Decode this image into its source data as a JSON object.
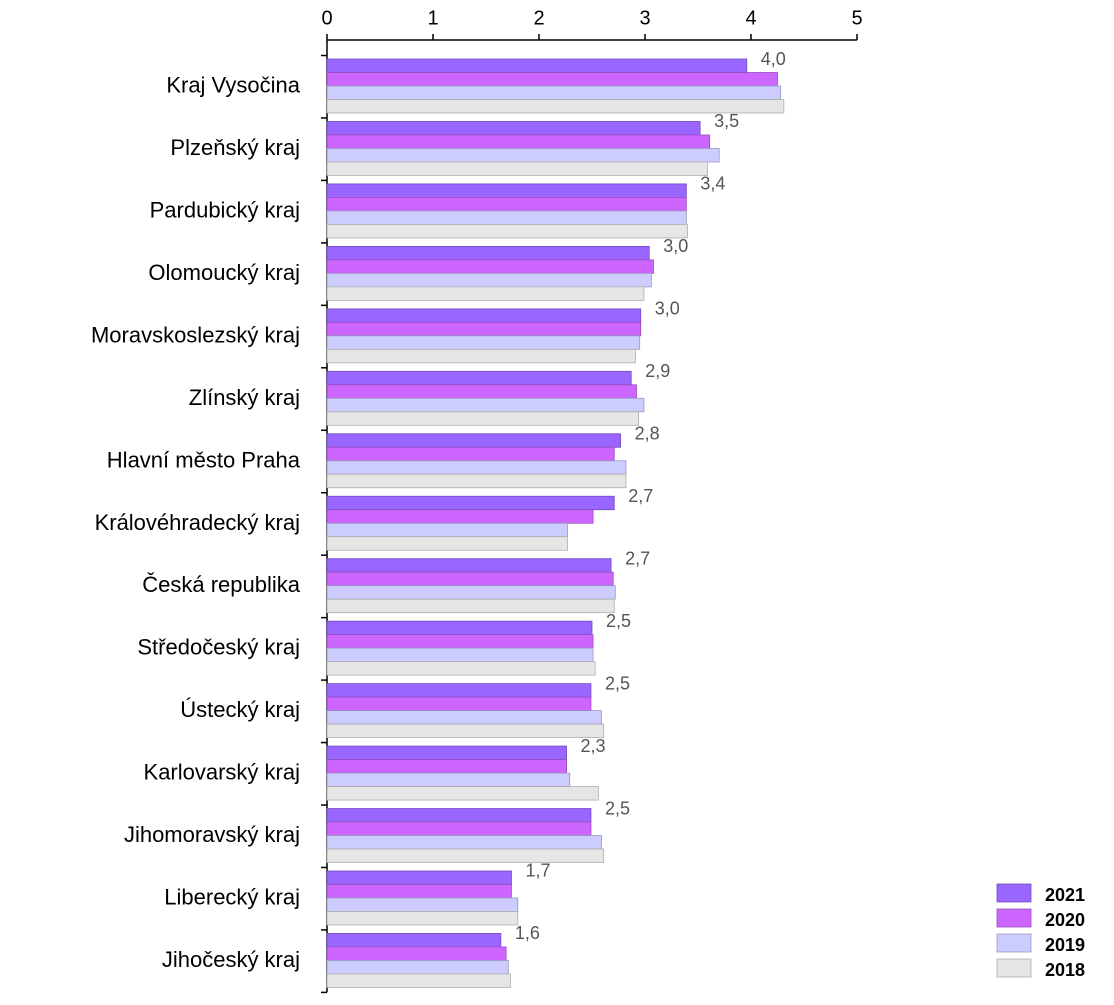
{
  "chart_data": {
    "type": "hbar",
    "categories": [
      "Kraj Vysočina",
      "Plzeňský kraj",
      "Pardubický kraj",
      "Olomoucký kraj",
      "Moravskoslezský kraj",
      "Zlínský kraj",
      "Hlavní město Praha",
      "Královéhradecký kraj",
      "Česká republika",
      "Středočeský kraj",
      "Ústecký kraj",
      "Karlovarský kraj",
      "Jihomoravský kraj",
      "Liberecký kraj",
      "Jihočeský kraj"
    ],
    "series": [
      {
        "name": "2021",
        "color": "#9966ff",
        "values": [
          3.96,
          3.52,
          3.39,
          3.04,
          2.96,
          2.87,
          2.77,
          2.71,
          2.68,
          2.5,
          2.49,
          2.26,
          2.49,
          1.74,
          1.64
        ],
        "value_labels": [
          "4,0",
          "3,5",
          "3,4",
          "3,0",
          "3,0",
          "2,9",
          "2,8",
          "2,7",
          "2,7",
          "2,5",
          "2,5",
          "2,3",
          "2,5",
          "1,7",
          "1,6"
        ]
      },
      {
        "name": "2020",
        "color": "#cc66ff",
        "values": [
          4.25,
          3.61,
          3.39,
          3.08,
          2.96,
          2.92,
          2.71,
          2.51,
          2.7,
          2.51,
          2.49,
          2.26,
          2.49,
          1.74,
          1.69
        ]
      },
      {
        "name": "2019",
        "color": "#ccccff",
        "values": [
          4.28,
          3.7,
          3.39,
          3.06,
          2.95,
          2.99,
          2.82,
          2.27,
          2.72,
          2.51,
          2.59,
          2.29,
          2.59,
          1.8,
          1.71
        ]
      },
      {
        "name": "2018",
        "color": "#e6e6e6",
        "values": [
          4.31,
          3.59,
          3.4,
          2.99,
          2.91,
          2.94,
          2.82,
          2.27,
          2.71,
          2.53,
          2.61,
          2.56,
          2.61,
          1.8,
          1.73
        ]
      }
    ],
    "xlim": [
      0,
      5
    ],
    "xticks": [
      0,
      1,
      2,
      3,
      4,
      5
    ],
    "legend": "bottom-right"
  }
}
